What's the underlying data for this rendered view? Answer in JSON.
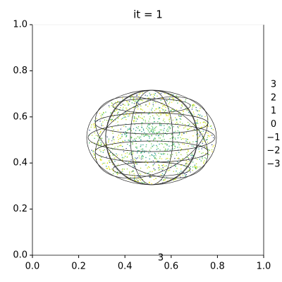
{
  "chart_data": {
    "type": "scatter3d",
    "title": "it = 1",
    "xlim": [
      0,
      1
    ],
    "xticks": [
      {
        "value": 0,
        "label": "0.0"
      },
      {
        "value": 0.2,
        "label": "0.2"
      },
      {
        "value": 0.4,
        "label": "0.4"
      },
      {
        "value": 0.6,
        "label": "0.6"
      },
      {
        "value": 0.8,
        "label": "0.8"
      },
      {
        "value": 1,
        "label": "1.0"
      }
    ],
    "ylim": [
      0,
      1
    ],
    "yticks": [
      {
        "value": 0,
        "label": "0.0"
      },
      {
        "value": 0.2,
        "label": "0.2"
      },
      {
        "value": 0.4,
        "label": "0.4"
      },
      {
        "value": 0.6,
        "label": "0.6"
      },
      {
        "value": 0.8,
        "label": "0.8"
      },
      {
        "value": 1,
        "label": "1.0"
      }
    ],
    "zlim": [
      -3,
      3
    ],
    "zticks": [
      3,
      2,
      1,
      0,
      {
        "value": -1,
        "label": "−1"
      },
      {
        "value": -2,
        "label": "−2"
      },
      {
        "value": -3,
        "label": "−3"
      }
    ],
    "x3d_ticks": [
      3
    ]
  }
}
